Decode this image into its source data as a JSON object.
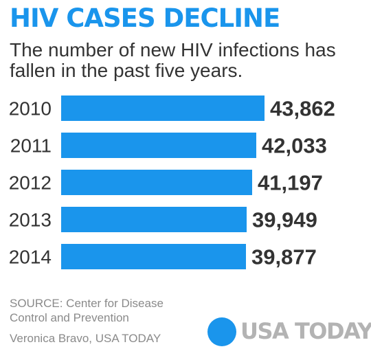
{
  "title": "HIV CASES DECLINE",
  "subtitle": "The number of new HIV infections has fallen in the past five years.",
  "source": "SOURCE:  Center for Disease Control and Prevention",
  "credit": "Veronica Bravo, USA TODAY",
  "logo": {
    "text": "USA TODAY"
  },
  "colors": {
    "bar": "#1a95ec",
    "value_label": "#333333",
    "category_label": "#333333"
  },
  "chart_data": {
    "type": "bar",
    "orientation": "horizontal",
    "categories": [
      "2010",
      "2011",
      "2012",
      "2013",
      "2014"
    ],
    "values": [
      43862,
      42033,
      41197,
      39949,
      39877
    ],
    "value_labels": [
      "43,862",
      "42,033",
      "41,197",
      "39,949",
      "39,877"
    ],
    "xlim": [
      0,
      43862
    ],
    "grid": false,
    "legend": "none"
  }
}
